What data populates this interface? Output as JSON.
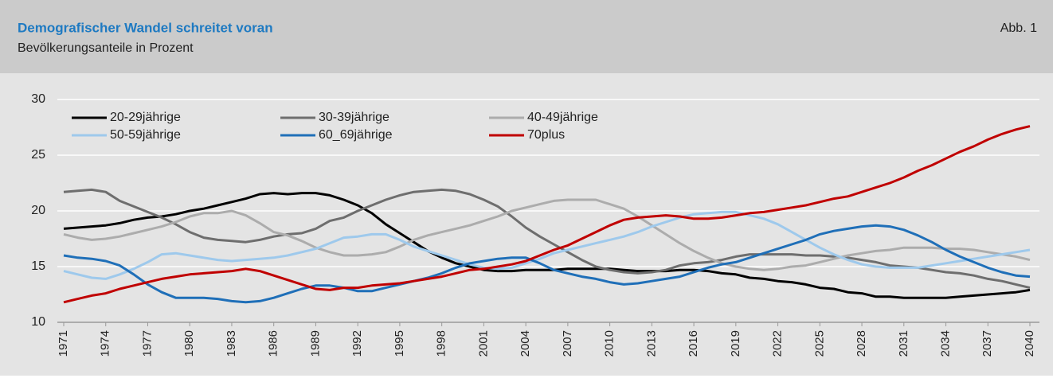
{
  "chart_data": {
    "type": "line",
    "title": "Demografischer Wandel schreitet voran",
    "subtitle": "Bevölkerungsanteile in Prozent",
    "figure_label": "Abb. 1",
    "legend": "top-left",
    "grid": true,
    "x": [
      1971,
      1972,
      1973,
      1974,
      1975,
      1976,
      1977,
      1978,
      1979,
      1980,
      1981,
      1982,
      1983,
      1984,
      1985,
      1986,
      1987,
      1988,
      1989,
      1990,
      1991,
      1992,
      1993,
      1994,
      1995,
      1996,
      1997,
      1998,
      1999,
      2000,
      2001,
      2002,
      2003,
      2004,
      2005,
      2006,
      2007,
      2008,
      2009,
      2010,
      2011,
      2012,
      2013,
      2014,
      2015,
      2016,
      2017,
      2018,
      2019,
      2020,
      2021,
      2022,
      2023,
      2024,
      2025,
      2026,
      2027,
      2028,
      2029,
      2030,
      2031,
      2032,
      2033,
      2034,
      2035,
      2036,
      2037,
      2038,
      2039,
      2040
    ],
    "xlim": [
      1971,
      2040
    ],
    "xticks": [
      1971,
      1974,
      1977,
      1980,
      1983,
      1986,
      1989,
      1992,
      1995,
      1998,
      2001,
      2004,
      2007,
      2010,
      2013,
      2016,
      2019,
      2022,
      2025,
      2028,
      2031,
      2034,
      2037,
      2040
    ],
    "ylim": [
      10,
      30
    ],
    "yticks": [
      10,
      15,
      20,
      25,
      30
    ],
    "series": [
      {
        "name": "20-29jährige",
        "color": "#000000",
        "values": [
          18.4,
          18.5,
          18.6,
          18.7,
          18.9,
          19.2,
          19.4,
          19.5,
          19.7,
          20.0,
          20.2,
          20.5,
          20.8,
          21.1,
          21.5,
          21.6,
          21.5,
          21.6,
          21.6,
          21.4,
          21.0,
          20.5,
          19.8,
          18.8,
          18.0,
          17.2,
          16.4,
          15.8,
          15.3,
          15.0,
          14.7,
          14.6,
          14.6,
          14.7,
          14.7,
          14.7,
          14.8,
          14.8,
          14.8,
          14.8,
          14.7,
          14.6,
          14.6,
          14.6,
          14.7,
          14.7,
          14.6,
          14.4,
          14.3,
          14.0,
          13.9,
          13.7,
          13.6,
          13.4,
          13.1,
          13.0,
          12.7,
          12.6,
          12.3,
          12.3,
          12.2,
          12.2,
          12.2,
          12.2,
          12.3,
          12.4,
          12.5,
          12.6,
          12.7,
          12.9
        ]
      },
      {
        "name": "30-39jährige",
        "color": "#6e6e6e",
        "values": [
          21.7,
          21.8,
          21.9,
          21.7,
          20.9,
          20.4,
          19.9,
          19.4,
          18.8,
          18.1,
          17.6,
          17.4,
          17.3,
          17.2,
          17.4,
          17.7,
          17.9,
          18.0,
          18.4,
          19.1,
          19.4,
          20.0,
          20.5,
          21.0,
          21.4,
          21.7,
          21.8,
          21.9,
          21.8,
          21.5,
          21.0,
          20.4,
          19.5,
          18.5,
          17.7,
          17.0,
          16.3,
          15.6,
          15.0,
          14.7,
          14.5,
          14.4,
          14.5,
          14.7,
          15.1,
          15.3,
          15.4,
          15.6,
          15.9,
          16.1,
          16.1,
          16.1,
          16.1,
          16.0,
          16.0,
          15.9,
          15.8,
          15.6,
          15.4,
          15.1,
          15.0,
          14.9,
          14.7,
          14.5,
          14.4,
          14.2,
          13.9,
          13.7,
          13.4,
          13.1
        ]
      },
      {
        "name": "40-49jährige",
        "color": "#acacac",
        "values": [
          17.9,
          17.6,
          17.4,
          17.5,
          17.7,
          18.0,
          18.3,
          18.6,
          19.0,
          19.5,
          19.8,
          19.8,
          20.0,
          19.6,
          18.9,
          18.1,
          17.8,
          17.3,
          16.7,
          16.3,
          16.0,
          16.0,
          16.1,
          16.3,
          16.8,
          17.4,
          17.8,
          18.1,
          18.4,
          18.7,
          19.1,
          19.5,
          20.0,
          20.3,
          20.6,
          20.9,
          21.0,
          21.0,
          21.0,
          20.6,
          20.2,
          19.5,
          18.7,
          17.9,
          17.1,
          16.4,
          15.8,
          15.3,
          15.0,
          14.8,
          14.7,
          14.8,
          15.0,
          15.1,
          15.4,
          15.7,
          16.0,
          16.2,
          16.4,
          16.5,
          16.7,
          16.7,
          16.7,
          16.6,
          16.6,
          16.5,
          16.3,
          16.1,
          15.9,
          15.6
        ]
      },
      {
        "name": "50-59jährige",
        "color": "#9ec9ec",
        "values": [
          14.6,
          14.3,
          14.0,
          13.9,
          14.3,
          14.8,
          15.4,
          16.1,
          16.2,
          16.0,
          15.8,
          15.6,
          15.5,
          15.6,
          15.7,
          15.8,
          16.0,
          16.3,
          16.6,
          17.1,
          17.6,
          17.7,
          17.9,
          17.9,
          17.4,
          16.8,
          16.4,
          16.0,
          15.6,
          15.2,
          14.9,
          14.8,
          14.9,
          15.3,
          15.7,
          16.2,
          16.5,
          16.8,
          17.1,
          17.4,
          17.7,
          18.1,
          18.6,
          19.0,
          19.4,
          19.7,
          19.8,
          19.9,
          19.9,
          19.6,
          19.3,
          18.8,
          18.1,
          17.4,
          16.7,
          16.1,
          15.6,
          15.2,
          15.0,
          14.9,
          14.9,
          14.9,
          15.1,
          15.3,
          15.5,
          15.7,
          15.9,
          16.1,
          16.3,
          16.5
        ]
      },
      {
        "name": "60_69jährige",
        "color": "#1f6fb8",
        "values": [
          16.0,
          15.8,
          15.7,
          15.5,
          15.1,
          14.3,
          13.4,
          12.7,
          12.2,
          12.2,
          12.2,
          12.1,
          11.9,
          11.8,
          11.9,
          12.2,
          12.6,
          13.0,
          13.3,
          13.3,
          13.1,
          12.8,
          12.8,
          13.1,
          13.4,
          13.7,
          14.0,
          14.4,
          14.9,
          15.3,
          15.5,
          15.7,
          15.8,
          15.8,
          15.3,
          14.7,
          14.4,
          14.1,
          13.9,
          13.6,
          13.4,
          13.5,
          13.7,
          13.9,
          14.1,
          14.5,
          14.9,
          15.2,
          15.4,
          15.8,
          16.2,
          16.6,
          17.0,
          17.4,
          17.9,
          18.2,
          18.4,
          18.6,
          18.7,
          18.6,
          18.3,
          17.8,
          17.2,
          16.5,
          15.9,
          15.4,
          14.9,
          14.5,
          14.2,
          14.1
        ]
      },
      {
        "name": "70plus",
        "color": "#c00000",
        "values": [
          11.8,
          12.1,
          12.4,
          12.6,
          13.0,
          13.3,
          13.6,
          13.9,
          14.1,
          14.3,
          14.4,
          14.5,
          14.6,
          14.8,
          14.6,
          14.2,
          13.8,
          13.4,
          13.0,
          12.9,
          13.1,
          13.1,
          13.3,
          13.4,
          13.5,
          13.7,
          13.9,
          14.1,
          14.4,
          14.7,
          14.8,
          15.0,
          15.2,
          15.5,
          16.0,
          16.5,
          16.9,
          17.5,
          18.1,
          18.7,
          19.2,
          19.4,
          19.5,
          19.6,
          19.5,
          19.3,
          19.3,
          19.4,
          19.6,
          19.8,
          19.9,
          20.1,
          20.3,
          20.5,
          20.8,
          21.1,
          21.3,
          21.7,
          22.1,
          22.5,
          23.0,
          23.6,
          24.1,
          24.7,
          25.3,
          25.8,
          26.4,
          26.9,
          27.3,
          27.6
        ]
      }
    ]
  }
}
